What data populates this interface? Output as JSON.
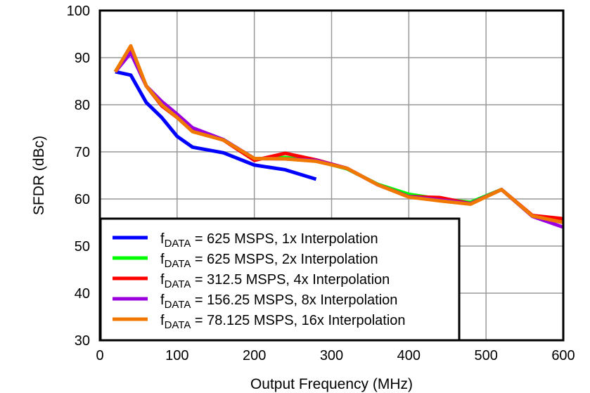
{
  "chart_data": {
    "type": "line",
    "title": "",
    "xlabel": "Output Frequency (MHz)",
    "ylabel": "SFDR (dBc)",
    "xlim": [
      0,
      600
    ],
    "ylim": [
      30,
      100
    ],
    "xticks": [
      0,
      100,
      200,
      300,
      400,
      500,
      600
    ],
    "yticks": [
      30,
      40,
      50,
      60,
      70,
      80,
      90,
      100
    ],
    "grid": true,
    "legend_placement": "bottom-left",
    "series": [
      {
        "name": "f_DATA = 625 MSPS, 1x Interpolation",
        "label_main": "f",
        "label_sub": "DATA",
        "label_rest": " = 625 MSPS, 1x Interpolation",
        "color": "#0000ff",
        "x": [
          20,
          40,
          60,
          80,
          100,
          120,
          160,
          200,
          240,
          280
        ],
        "y": [
          87,
          86.3,
          80.5,
          77.3,
          73.3,
          71,
          69.8,
          67.2,
          66.2,
          64.2
        ]
      },
      {
        "name": "f_DATA = 625 MSPS, 2x Interpolation",
        "label_main": "f",
        "label_sub": "DATA",
        "label_rest": " = 625 MSPS, 2x Interpolation",
        "color": "#00ff00",
        "x": [
          20,
          40,
          60,
          80,
          100,
          120,
          160,
          200,
          240,
          280,
          320,
          360,
          400,
          440,
          480,
          520,
          560,
          600
        ],
        "y": [
          87,
          92.3,
          84,
          80.2,
          77.4,
          74.5,
          72.6,
          68.5,
          68.8,
          68.1,
          66.4,
          63.1,
          61,
          60,
          59.3,
          62,
          56.4,
          55.5
        ]
      },
      {
        "name": "f_DATA = 312.5 MSPS, 4x Interpolation",
        "label_main": "f",
        "label_sub": "DATA",
        "label_rest": " = 312.5 MSPS, 4x Interpolation",
        "color": "#ff0000",
        "x": [
          20,
          40,
          60,
          80,
          100,
          120,
          160,
          200,
          240,
          280,
          320,
          360,
          400,
          440,
          480,
          520,
          560,
          600
        ],
        "y": [
          87,
          92,
          84,
          79.8,
          77.3,
          74.5,
          72.5,
          68.2,
          69.7,
          68.3,
          66.5,
          63,
          60.5,
          60.3,
          59,
          62,
          56.5,
          55.8
        ]
      },
      {
        "name": "f_DATA = 156.25 MSPS, 8x Interpolation",
        "label_main": "f",
        "label_sub": "DATA",
        "label_rest": " = 156.25 MSPS, 8x Interpolation",
        "color": "#9900dd",
        "x": [
          20,
          40,
          60,
          80,
          100,
          120,
          160,
          200,
          240,
          280,
          320,
          360,
          400,
          440,
          480,
          520,
          560,
          600
        ],
        "y": [
          87,
          91,
          84,
          80.7,
          78,
          75.1,
          72.6,
          68.6,
          68.5,
          68.2,
          66.5,
          63,
          60.5,
          59.8,
          59,
          62,
          56.3,
          54
        ]
      },
      {
        "name": "f_DATA = 78.125 MSPS, 16x Interpolation",
        "label_main": "f",
        "label_sub": "DATA",
        "label_rest": " = 78.125 MSPS, 16x Interpolation",
        "color": "#f07800",
        "x": [
          20,
          40,
          60,
          80,
          100,
          120,
          160,
          200,
          240,
          280,
          320,
          360,
          400,
          440,
          480,
          520,
          560,
          600
        ],
        "y": [
          87,
          92.5,
          84,
          80,
          77.3,
          74.3,
          72.5,
          68.6,
          68.5,
          68,
          66.5,
          63,
          60.4,
          59.6,
          58.9,
          62,
          56.4,
          55
        ]
      }
    ]
  }
}
